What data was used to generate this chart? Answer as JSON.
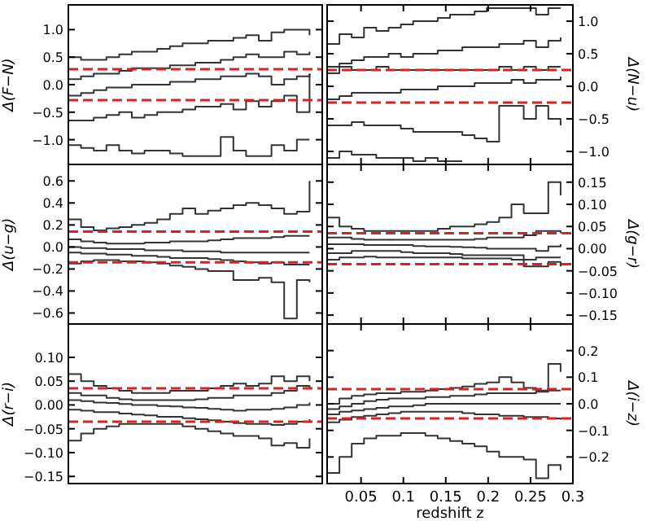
{
  "chart_data": [
    {
      "type": "step",
      "ylabel": "Δ(F−N)",
      "ylim": [
        -1.45,
        1.45
      ],
      "yticks": [
        {
          "value": -1,
          "label": "−1.0"
        },
        {
          "value": -0.5,
          "label": "−0.5"
        },
        {
          "value": 0,
          "label": "0.0"
        },
        {
          "value": 0.5,
          "label": "0.5"
        },
        {
          "value": 1,
          "label": "1.0"
        }
      ],
      "categories": [
        null,
        null,
        null,
        null,
        null,
        null,
        null,
        null,
        null,
        null,
        null,
        null,
        null,
        null,
        null,
        null,
        null,
        null,
        null,
        null
      ],
      "series": [
        {
          "color": "#333333",
          "values": [
            0.5,
            0.45,
            0.45,
            0.5,
            0.55,
            0.6,
            0.6,
            0.65,
            0.7,
            0.75,
            0.75,
            0.8,
            0.8,
            0.85,
            0.9,
            0.8,
            0.95,
            1.0,
            1.0,
            0.9
          ]
        },
        {
          "color": "#333333",
          "values": [
            0.1,
            0.15,
            0.2,
            0.2,
            0.25,
            0.3,
            0.3,
            0.3,
            0.35,
            0.35,
            0.4,
            0.4,
            0.45,
            0.5,
            0.55,
            0.5,
            0.5,
            0.6,
            0.55,
            0.6
          ]
        },
        {
          "color": "#333333",
          "values": [
            -0.2,
            -0.15,
            -0.1,
            -0.05,
            -0.05,
            0,
            0,
            0,
            0.05,
            0.05,
            0.1,
            0.1,
            0.15,
            0.15,
            0.2,
            0.15,
            0,
            0.1,
            0.15,
            0.2
          ]
        },
        {
          "color": "#333333",
          "values": [
            -0.65,
            -0.65,
            -0.6,
            -0.55,
            -0.5,
            -0.6,
            -0.55,
            -0.5,
            -0.5,
            -0.45,
            -0.4,
            -0.4,
            -0.35,
            -0.45,
            -0.3,
            -0.4,
            -0.3,
            -0.2,
            -0.5,
            0.2
          ]
        },
        {
          "color": "#333333",
          "values": [
            -1.1,
            -1.15,
            -1.2,
            -1.1,
            -1.2,
            -1.25,
            -1.2,
            -1.2,
            -1.25,
            -1.3,
            -1.3,
            -1.3,
            -0.95,
            -1.2,
            -1.3,
            -1.3,
            -1.1,
            -1.2,
            -1.0,
            -1.0
          ]
        }
      ],
      "ref_lines": [
        {
          "axis": "y",
          "value": 0.28,
          "color": "#e02020",
          "line_style": "dashed"
        },
        {
          "axis": "y",
          "value": -0.28,
          "color": "#e02020",
          "line_style": "dashed"
        }
      ]
    },
    {
      "type": "step",
      "ylabel": "Δ(N−u)",
      "tick_labels": "y",
      "xlim": [
        0.01,
        0.3
      ],
      "xticks": [
        0.05,
        0.1,
        0.15,
        0.2,
        0.25,
        0.3
      ],
      "ylim": [
        -1.2,
        1.25
      ],
      "yticks": [
        {
          "value": -1,
          "label": "−1.0"
        },
        {
          "value": -0.5,
          "label": "−0.5"
        },
        {
          "value": 0,
          "label": "0.0"
        },
        {
          "value": 0.5,
          "label": "0.5"
        },
        {
          "value": 1,
          "label": "1.0"
        }
      ],
      "x": [
        0.01,
        0.0245,
        0.039,
        0.0535,
        0.068,
        0.0825,
        0.097,
        0.1115,
        0.126,
        0.1405,
        0.155,
        0.1695,
        0.184,
        0.1985,
        0.213,
        0.2275,
        0.242,
        0.2565,
        0.271,
        0.2855
      ],
      "series": [
        {
          "color": "#333333",
          "values": [
            0.65,
            0.8,
            0.75,
            0.9,
            0.85,
            0.9,
            0.95,
            1.0,
            1.0,
            1.05,
            1.1,
            1.1,
            1.15,
            1.2,
            1.2,
            1.2,
            1.2,
            1.1,
            1.2,
            1.2
          ]
        },
        {
          "color": "#333333",
          "values": [
            0.3,
            0.35,
            0.4,
            0.45,
            0.45,
            0.5,
            0.45,
            0.5,
            0.5,
            0.55,
            0.55,
            0.6,
            0.6,
            0.6,
            0.65,
            0.65,
            0.7,
            0.6,
            0.7,
            0.75
          ]
        },
        {
          "color": "#333333",
          "values": [
            0.2,
            0.3,
            0.25,
            0.25,
            0.3,
            0.25,
            0.25,
            0.25,
            0.25,
            0.25,
            0.25,
            0.25,
            0.25,
            0.25,
            0.3,
            0.25,
            0.3,
            0.25,
            0.3,
            0.3
          ]
        },
        {
          "color": "#333333",
          "values": [
            -0.2,
            -0.15,
            -0.1,
            -0.1,
            -0.1,
            -0.1,
            -0.05,
            -0.05,
            -0.05,
            0,
            0,
            0,
            0.05,
            0.05,
            0.05,
            0.1,
            0.05,
            0.1,
            0.1,
            0.15
          ]
        },
        {
          "color": "#333333",
          "values": [
            -0.6,
            -0.6,
            -0.55,
            -0.6,
            -0.6,
            -0.6,
            -0.65,
            -0.7,
            -0.7,
            -0.7,
            -0.7,
            -0.75,
            -0.8,
            -0.85,
            -0.3,
            -0.3,
            -0.5,
            -0.3,
            -0.5,
            -0.6
          ]
        },
        {
          "color": "#333333",
          "values": [
            -1.1,
            -1.0,
            -1.05,
            -1.05,
            -1.1,
            -1.1,
            -1.1,
            -1.15,
            -1.1,
            -1.15,
            null,
            -1.15,
            null,
            null,
            null,
            null,
            null,
            null,
            null,
            null
          ]
        }
      ],
      "ref_lines": [
        {
          "axis": "y",
          "value": 0.25,
          "color": "#e02020",
          "line_style": "dashed"
        },
        {
          "axis": "y",
          "value": -0.25,
          "color": "#e02020",
          "line_style": "dashed"
        }
      ]
    },
    {
      "type": "step",
      "ylabel": "Δ(u−g)",
      "ylim": [
        -0.7,
        0.75
      ],
      "yticks": [
        {
          "value": -0.6,
          "label": "−0.6"
        },
        {
          "value": -0.4,
          "label": "−0.4"
        },
        {
          "value": -0.2,
          "label": "−0.2"
        },
        {
          "value": 0,
          "label": "0.0"
        },
        {
          "value": 0.2,
          "label": "0.2"
        },
        {
          "value": 0.4,
          "label": "0.4"
        },
        {
          "value": 0.6,
          "label": "0.6"
        }
      ],
      "categories": [
        null,
        null,
        null,
        null,
        null,
        null,
        null,
        null,
        null,
        null,
        null,
        null,
        null,
        null,
        null,
        null,
        null,
        null,
        null,
        null
      ],
      "series": [
        {
          "color": "#333333",
          "values": [
            0.25,
            0.18,
            0.15,
            0.17,
            0.18,
            0.2,
            0.22,
            0.25,
            0.3,
            0.35,
            0.3,
            0.33,
            0.35,
            0.38,
            0.4,
            0.38,
            0.35,
            0.3,
            0.32,
            0.6
          ]
        },
        {
          "color": "#333333",
          "values": [
            0.07,
            0.05,
            0.04,
            0.03,
            0.03,
            0.03,
            0.04,
            0.04,
            0.05,
            0.05,
            0.05,
            0.06,
            0.07,
            0.08,
            0.08,
            0.08,
            0.09,
            0.1,
            0.1,
            0.1
          ]
        },
        {
          "color": "#333333",
          "values": [
            0,
            -0.01,
            -0.01,
            -0.02,
            -0.02,
            -0.02,
            -0.03,
            -0.03,
            -0.03,
            -0.04,
            -0.04,
            -0.04,
            -0.05,
            -0.05,
            -0.05,
            -0.05,
            -0.05,
            -0.05,
            -0.05,
            -0.05
          ]
        },
        {
          "color": "#333333",
          "values": [
            -0.05,
            -0.06,
            -0.06,
            -0.07,
            -0.07,
            -0.08,
            -0.08,
            -0.09,
            -0.1,
            -0.1,
            -0.1,
            -0.11,
            -0.12,
            -0.13,
            -0.14,
            -0.15,
            -0.14,
            -0.16,
            -0.16,
            -0.16
          ]
        },
        {
          "color": "#333333",
          "values": [
            -0.15,
            -0.13,
            -0.12,
            -0.12,
            -0.13,
            -0.13,
            -0.14,
            -0.15,
            -0.17,
            -0.18,
            -0.2,
            -0.22,
            -0.22,
            -0.3,
            -0.3,
            -0.28,
            -0.32,
            -0.65,
            -0.3,
            -0.32
          ]
        }
      ],
      "ref_lines": [
        {
          "axis": "y",
          "value": 0.14,
          "color": "#e02020",
          "line_style": "dashed"
        },
        {
          "axis": "y",
          "value": -0.14,
          "color": "#e02020",
          "line_style": "dashed"
        }
      ]
    },
    {
      "type": "step",
      "ylabel": "Δ(g−r)",
      "tick_labels": "y",
      "xlim": [
        0.01,
        0.3
      ],
      "xticks": [
        0.05,
        0.1,
        0.15,
        0.2,
        0.25,
        0.3
      ],
      "ylim": [
        -0.17,
        0.19
      ],
      "yticks": [
        {
          "value": -0.15,
          "label": "−0.15"
        },
        {
          "value": -0.1,
          "label": "−0.10"
        },
        {
          "value": -0.05,
          "label": "−0.05"
        },
        {
          "value": 0,
          "label": "0.00"
        },
        {
          "value": 0.05,
          "label": "0.05"
        },
        {
          "value": 0.1,
          "label": "0.10"
        },
        {
          "value": 0.15,
          "label": "0.15"
        }
      ],
      "x": [
        0.01,
        0.0245,
        0.039,
        0.0535,
        0.068,
        0.0825,
        0.097,
        0.1115,
        0.126,
        0.1405,
        0.155,
        0.1695,
        0.184,
        0.1985,
        0.213,
        0.2275,
        0.242,
        0.2565,
        0.271,
        0.2855
      ],
      "series": [
        {
          "color": "#333333",
          "values": [
            0.07,
            0.05,
            0.045,
            0.04,
            0.04,
            0.04,
            0.04,
            0.04,
            0.04,
            0.045,
            0.05,
            0.05,
            0.055,
            0.06,
            0.07,
            0.1,
            0.08,
            0.08,
            0.15,
            0.12
          ]
        },
        {
          "color": "#333333",
          "values": [
            0.025,
            0.025,
            0.022,
            0.02,
            0.02,
            0.02,
            0.02,
            0.02,
            0.02,
            0.02,
            0.02,
            0.02,
            0.022,
            0.025,
            0.025,
            0.025,
            0.03,
            0.04,
            0.04,
            0.035
          ]
        },
        {
          "color": "#333333",
          "values": [
            0.01,
            0.01,
            0.01,
            0.008,
            0.008,
            0.008,
            0.008,
            0.006,
            0.005,
            0.005,
            0.004,
            0.003,
            0.002,
            0,
            0,
            0,
            0,
            -0.005,
            0.005,
            0.01
          ]
        },
        {
          "color": "#333333",
          "values": [
            -0.01,
            -0.01,
            -0.005,
            -0.005,
            -0.005,
            -0.005,
            -0.008,
            -0.01,
            -0.01,
            -0.01,
            -0.012,
            -0.015,
            -0.015,
            -0.015,
            -0.015,
            -0.015,
            -0.025,
            -0.02,
            -0.02,
            -0.02
          ]
        },
        {
          "color": "#333333",
          "values": [
            -0.025,
            -0.02,
            -0.02,
            -0.018,
            -0.02,
            -0.02,
            -0.02,
            -0.02,
            -0.02,
            -0.02,
            -0.02,
            -0.022,
            -0.022,
            -0.022,
            -0.022,
            -0.025,
            -0.04,
            -0.04,
            -0.03,
            -0.04
          ]
        }
      ],
      "ref_lines": [
        {
          "axis": "y",
          "value": 0.035,
          "color": "#e02020",
          "line_style": "dashed"
        },
        {
          "axis": "y",
          "value": -0.035,
          "color": "#e02020",
          "line_style": "dashed"
        }
      ]
    },
    {
      "type": "step",
      "ylabel": "Δ(r−i)",
      "ylim": [
        -0.165,
        0.17
      ],
      "yticks": [
        {
          "value": -0.15,
          "label": "−0.15"
        },
        {
          "value": -0.1,
          "label": "−0.10"
        },
        {
          "value": -0.05,
          "label": "−0.05"
        },
        {
          "value": 0,
          "label": "0.00"
        },
        {
          "value": 0.05,
          "label": "0.05"
        },
        {
          "value": 0.1,
          "label": "0.10"
        }
      ],
      "categories": [
        null,
        null,
        null,
        null,
        null,
        null,
        null,
        null,
        null,
        null,
        null,
        null,
        null,
        null,
        null,
        null,
        null,
        null,
        null,
        null
      ],
      "series": [
        {
          "color": "#333333",
          "values": [
            0.065,
            0.05,
            0.04,
            0.035,
            0.03,
            0.025,
            0.025,
            0.025,
            0.03,
            0.03,
            0.03,
            0.035,
            0.04,
            0.045,
            0.04,
            0.045,
            0.06,
            0.05,
            0.06,
            0.05
          ]
        },
        {
          "color": "#333333",
          "values": [
            0.025,
            0.02,
            0.02,
            0.015,
            0.012,
            0.01,
            0.01,
            0.01,
            0.01,
            0.01,
            0.012,
            0.015,
            0.015,
            0.02,
            0.02,
            0.02,
            0.025,
            0.03,
            0.04,
            0.035
          ]
        },
        {
          "color": "#333333",
          "values": [
            0.01,
            0.008,
            0.005,
            0.004,
            0.002,
            0,
            0,
            -0.002,
            -0.003,
            -0.005,
            -0.006,
            -0.008,
            -0.01,
            -0.012,
            -0.01,
            -0.01,
            -0.008,
            -0.005,
            0,
            0.005
          ]
        },
        {
          "color": "#333333",
          "values": [
            -0.01,
            -0.012,
            -0.015,
            -0.015,
            -0.018,
            -0.02,
            -0.022,
            -0.025,
            -0.025,
            -0.028,
            -0.03,
            -0.032,
            -0.035,
            -0.038,
            -0.04,
            -0.04,
            -0.042,
            -0.04,
            -0.035,
            -0.03
          ]
        },
        {
          "color": "#333333",
          "values": [
            -0.075,
            -0.06,
            -0.05,
            -0.045,
            -0.04,
            -0.04,
            -0.04,
            -0.04,
            -0.04,
            -0.045,
            -0.05,
            -0.055,
            -0.06,
            -0.065,
            -0.065,
            -0.07,
            -0.085,
            -0.08,
            -0.09,
            -0.07
          ]
        }
      ],
      "ref_lines": [
        {
          "axis": "y",
          "value": 0.035,
          "color": "#e02020",
          "line_style": "dashed"
        },
        {
          "axis": "y",
          "value": -0.035,
          "color": "#e02020",
          "line_style": "dashed"
        }
      ]
    },
    {
      "type": "step",
      "xlabel": "redshift z",
      "ylabel": "Δ(i−z)",
      "xlim": [
        0.01,
        0.3
      ],
      "xticks": [
        0.05,
        0.1,
        0.15,
        0.2,
        0.25,
        0.3
      ],
      "ylim": [
        -0.3,
        0.3
      ],
      "yticks": [
        {
          "value": -0.2,
          "label": "−0.2"
        },
        {
          "value": -0.1,
          "label": "−0.1"
        },
        {
          "value": 0,
          "label": "0.0"
        },
        {
          "value": 0.1,
          "label": "0.1"
        },
        {
          "value": 0.2,
          "label": "0.2"
        }
      ],
      "x": [
        0.01,
        0.0245,
        0.039,
        0.0535,
        0.068,
        0.0825,
        0.097,
        0.1115,
        0.126,
        0.1405,
        0.155,
        0.1695,
        0.184,
        0.1985,
        0.213,
        0.2275,
        0.242,
        0.2565,
        0.271,
        0.2855
      ],
      "series": [
        {
          "color": "#333333",
          "values": [
            0,
            0.02,
            0.03,
            0.035,
            0.04,
            0.04,
            0.045,
            0.045,
            0.05,
            0.055,
            0.06,
            0.065,
            0.075,
            0.08,
            0.1,
            0.08,
            0.06,
            0.05,
            0.15,
            0.12
          ]
        },
        {
          "color": "#333333",
          "values": [
            -0.02,
            -0.01,
            0,
            0.01,
            0.015,
            0.02,
            0.02,
            0.02,
            0.025,
            0.025,
            0.03,
            0.03,
            0.035,
            0.04,
            0.04,
            0.04,
            0.04,
            0.045,
            0.05,
            0.05
          ]
        },
        {
          "color": "#333333",
          "values": [
            -0.04,
            -0.03,
            -0.025,
            -0.02,
            -0.015,
            -0.01,
            -0.01,
            -0.005,
            0,
            0,
            0,
            0,
            0,
            0,
            0,
            0,
            0,
            0,
            0,
            0
          ]
        },
        {
          "color": "#333333",
          "values": [
            -0.07,
            -0.06,
            -0.05,
            -0.045,
            -0.04,
            -0.035,
            -0.03,
            -0.03,
            -0.03,
            -0.03,
            -0.03,
            -0.035,
            -0.04,
            -0.04,
            -0.045,
            -0.045,
            -0.05,
            -0.05,
            -0.055,
            -0.06
          ]
        },
        {
          "color": "#333333",
          "values": [
            -0.26,
            -0.2,
            -0.15,
            -0.13,
            -0.12,
            -0.12,
            -0.11,
            -0.11,
            -0.12,
            -0.13,
            -0.14,
            -0.15,
            -0.16,
            -0.18,
            -0.2,
            -0.2,
            -0.21,
            -0.28,
            -0.23,
            -0.25
          ]
        }
      ],
      "ref_lines": [
        {
          "axis": "y",
          "value": 0.055,
          "color": "#e02020",
          "line_style": "dashed"
        },
        {
          "axis": "y",
          "value": -0.055,
          "color": "#e02020",
          "line_style": "dashed"
        }
      ]
    }
  ]
}
